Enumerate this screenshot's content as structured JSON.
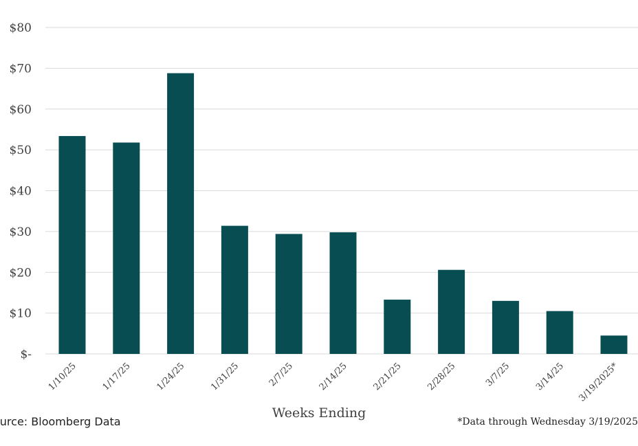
{
  "chart_data": {
    "type": "bar",
    "categories": [
      "1/10/25",
      "1/17/25",
      "1/24/25",
      "1/31/25",
      "2/7/25",
      "2/14/25",
      "2/21/25",
      "2/28/25",
      "3/7/25",
      "3/14/25",
      "3/19/2025*"
    ],
    "values": [
      53.4,
      51.8,
      68.8,
      31.4,
      29.4,
      29.8,
      13.3,
      20.6,
      13.0,
      10.5,
      4.5
    ],
    "title": "",
    "xlabel": "Weeks Ending",
    "ylabel": "",
    "ylim": [
      0,
      80
    ],
    "yticks": [
      0,
      10,
      20,
      30,
      40,
      50,
      60,
      70,
      80
    ],
    "ytick_labels": [
      "$-",
      "$10",
      "$20",
      "$30",
      "$40",
      "$50",
      "$60",
      "$70",
      "$80"
    ],
    "grid": true,
    "bar_color": "#074d52",
    "grid_color": "#d9d9d9"
  },
  "footer": {
    "source": "ource: Bloomberg Data",
    "note": "*Data through Wednesday 3/19/2025"
  }
}
